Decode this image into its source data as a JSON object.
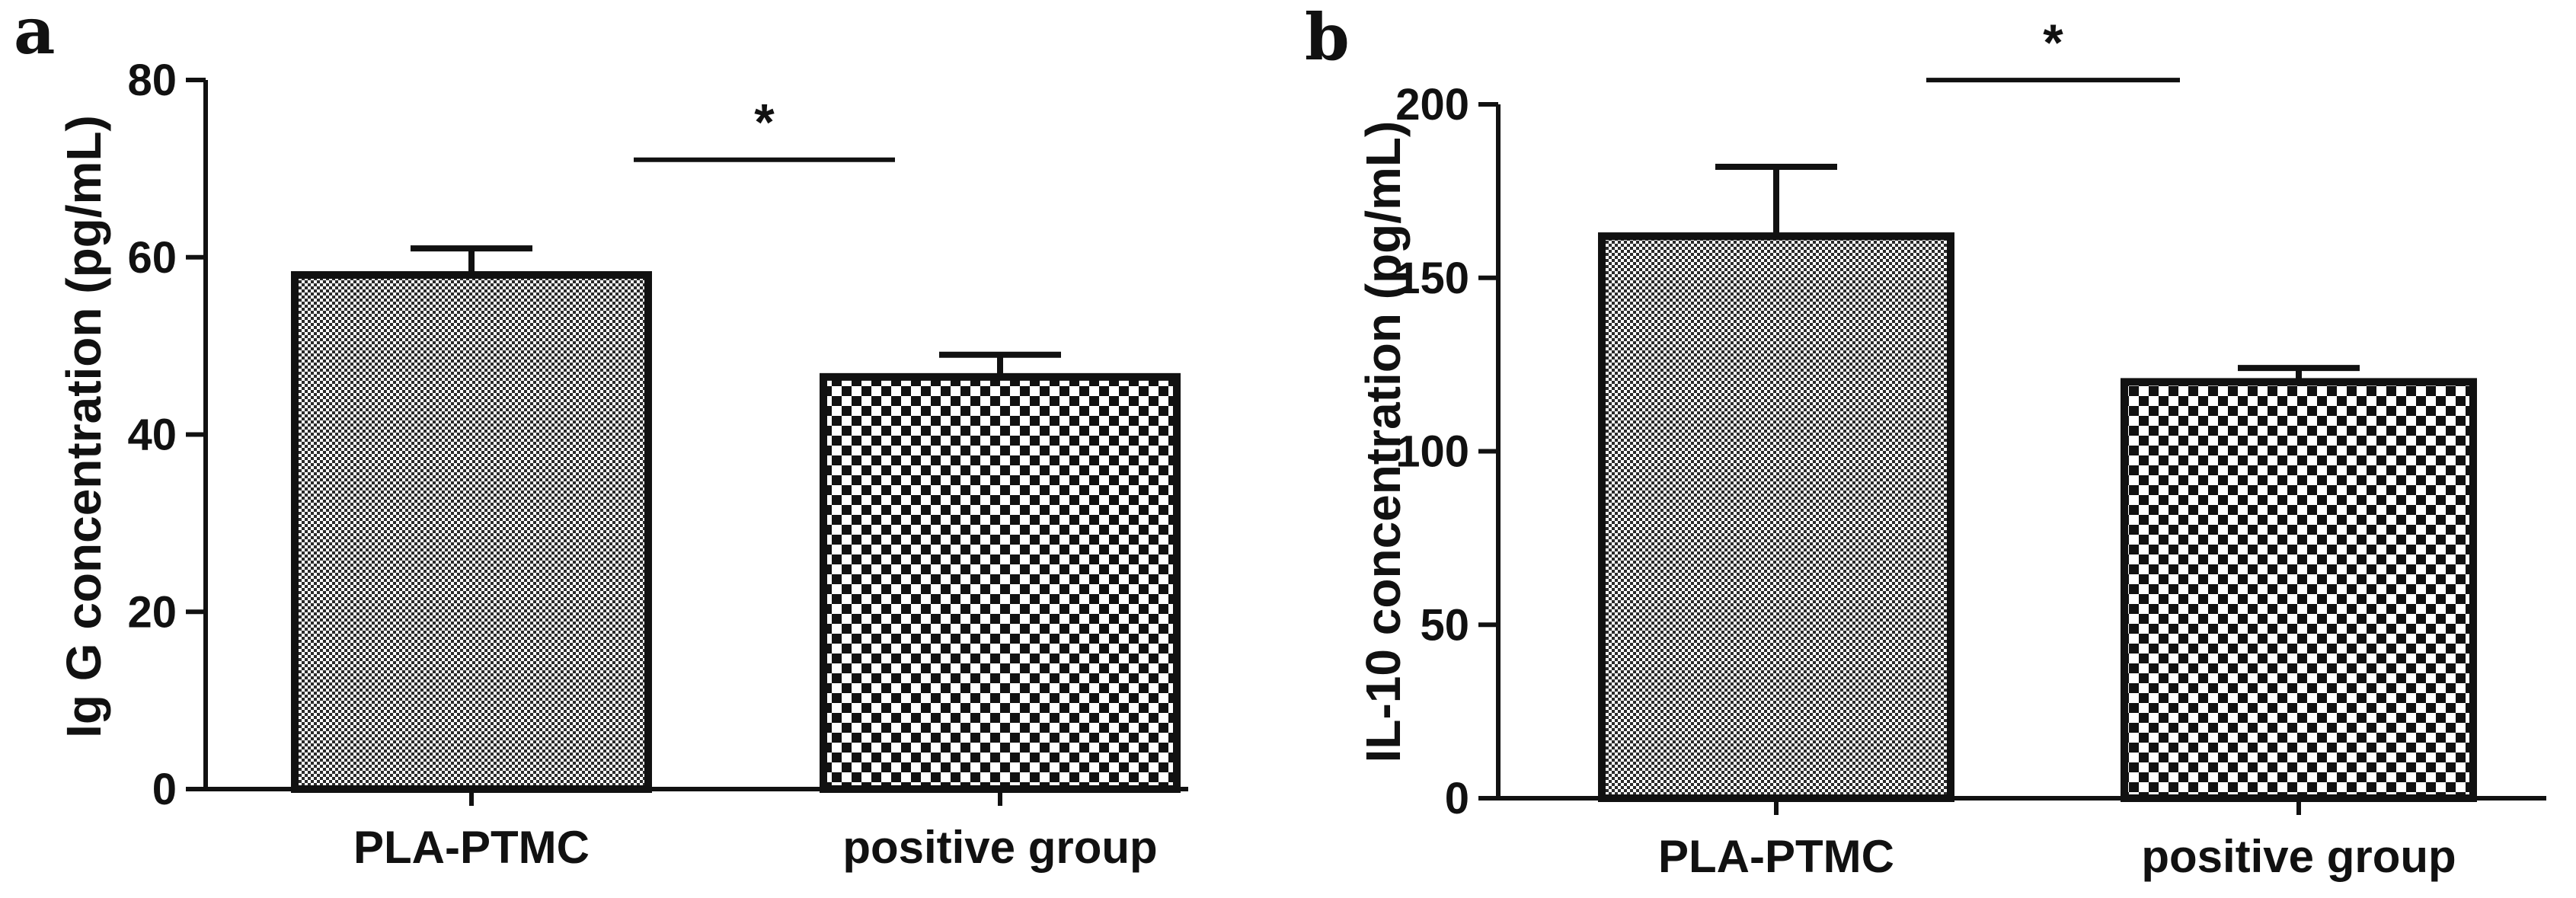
{
  "chart_data": [
    {
      "type": "bar",
      "panel_label": "a",
      "ylabel": "Ig G concentration (pg/mL)",
      "xlabel": "",
      "categories": [
        "PLA-PTMC",
        "positive group"
      ],
      "values": [
        58,
        46.5
      ],
      "errors": [
        3,
        2.5
      ],
      "ylim": [
        0,
        80
      ],
      "yticks": [
        0,
        20,
        40,
        60,
        80
      ],
      "ytick_labels": [
        "0",
        "20",
        "40",
        "60",
        "80"
      ],
      "significance": {
        "label": "*",
        "y": 71
      }
    },
    {
      "type": "bar",
      "panel_label": "b",
      "ylabel": "IL-10 concentration (pg/mL)",
      "xlabel": "",
      "categories": [
        "PLA-PTMC",
        "positive group"
      ],
      "values": [
        162,
        120
      ],
      "errors": [
        20,
        4
      ],
      "ylim": [
        0,
        200
      ],
      "yticks": [
        0,
        50,
        100,
        150,
        200
      ],
      "ytick_labels": [
        "0",
        "50",
        "100",
        "150",
        "200"
      ],
      "significance": {
        "label": "*",
        "y": 207
      }
    }
  ]
}
